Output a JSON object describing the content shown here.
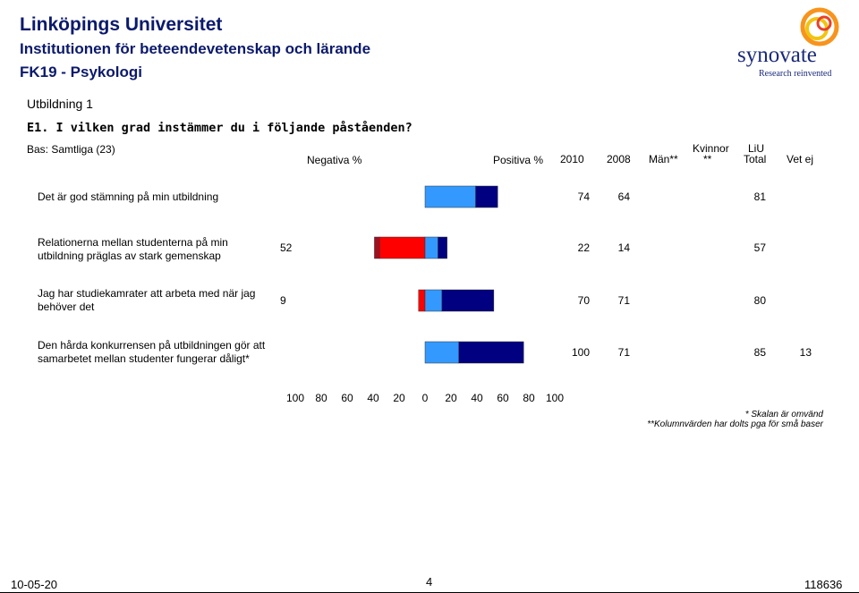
{
  "header": {
    "university": "Linköpings Universitet",
    "institution": "Institutionen för beteendevetenskap och lärande",
    "course": "FK19 - Psykologi",
    "section": "Utbildning 1",
    "question": "E1. I vilken grad instämmer du i följande påståenden?",
    "base": "Bas: Samtliga (23)"
  },
  "logo": {
    "name": "synovate",
    "tagline": "Research reinvented",
    "colors": [
      "#f7941d",
      "#f1c40f",
      "#e8402a"
    ]
  },
  "columns": {
    "negativa": "Negativa %",
    "positiva": "Positiva %",
    "y2010": "2010",
    "y2008": "2008",
    "man": "Män**",
    "kvinnor_line1": "Kvinnor",
    "kvinnor_line2": "**",
    "liu_line1": "LiU",
    "liu_line2": "Total",
    "vet_ej": "Vet ej"
  },
  "chart_data": {
    "type": "bar",
    "orientation": "diverging-horizontal",
    "xlim": [
      -100,
      100
    ],
    "x_ticks": [
      "100",
      "80",
      "60",
      "40",
      "20",
      "0",
      "20",
      "40",
      "60",
      "80",
      "100"
    ],
    "colors": {
      "neg_strong": "#a01020",
      "neg": "#ff0000",
      "pos": "#3399ff",
      "pos_strong": "#000080"
    },
    "categories": [
      "Det är god stämning på min utbildning",
      "Relationerna mellan studenterna på min utbildning präglas av stark gemenskap",
      "Jag har studiekamrater att arbeta med när jag behöver det",
      "Den hårda konkurrensen på utbildningen gör att samarbetet mellan studenter fungerar dåligt*"
    ],
    "series": [
      {
        "key": "neg_strong",
        "values": [
          0,
          4,
          0,
          0
        ]
      },
      {
        "key": "neg",
        "values": [
          0,
          35,
          5,
          0
        ]
      },
      {
        "key": "pos",
        "values": [
          39,
          10,
          13,
          26
        ]
      },
      {
        "key": "pos_strong",
        "values": [
          17,
          7,
          40,
          50
        ]
      }
    ],
    "negativa_pct": [
      "",
      "52",
      "9",
      ""
    ],
    "positiva_2010": [
      "74",
      "22",
      "70",
      "100"
    ],
    "positiva_2008": [
      "64",
      "14",
      "71",
      "71"
    ],
    "man": [
      "",
      "",
      "",
      ""
    ],
    "kvinnor": [
      "",
      "",
      "",
      ""
    ],
    "liu_total": [
      "81",
      "57",
      "80",
      "85"
    ],
    "vet_ej": [
      "",
      "",
      "",
      "13"
    ]
  },
  "notes": {
    "note1": "* Skalan är omvänd",
    "note2": "**Kolumnvärden har dolts pga för små baser"
  },
  "footer": {
    "date": "10-05-20",
    "page": "4",
    "project": "118636"
  }
}
